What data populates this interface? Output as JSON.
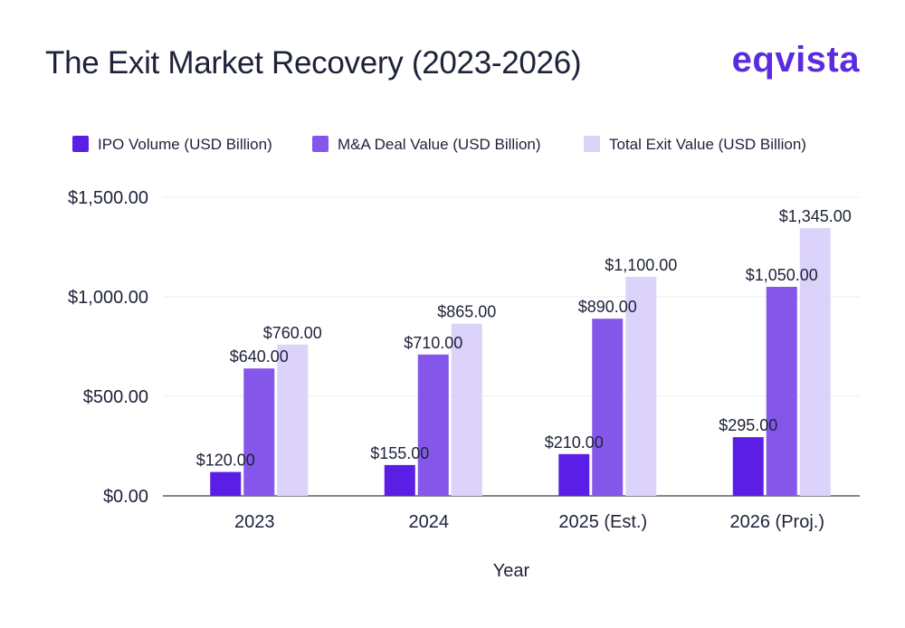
{
  "header": {
    "title": "The Exit Market Recovery (2023-2026)",
    "logo_text": "eqvista"
  },
  "chart_data": {
    "type": "bar",
    "title": "The Exit Market Recovery (2023-2026)",
    "xlabel": "Year",
    "ylabel": "",
    "categories": [
      "2023",
      "2024",
      "2025 (Est.)",
      "2026 (Proj.)"
    ],
    "series": [
      {
        "name": "IPO Volume (USD Billion)",
        "color": "#5a1ee6",
        "values": [
          120,
          155,
          210,
          295
        ],
        "labels": [
          "$120.00",
          "$155.00",
          "$210.00",
          "$295.00"
        ]
      },
      {
        "name": "M&A Deal Value (USD Billion)",
        "color": "#8457ea",
        "values": [
          640,
          710,
          890,
          1050
        ],
        "labels": [
          "$640.00",
          "$710.00",
          "$890.00",
          "$1,050.00"
        ]
      },
      {
        "name": "Total Exit Value (USD Billion)",
        "color": "#dcd3fb",
        "values": [
          760,
          865,
          1100,
          1345
        ],
        "labels": [
          "$760.00",
          "$865.00",
          "$1,100.00",
          "$1,345.00"
        ]
      }
    ],
    "ylim": [
      0,
      1500
    ],
    "yticks": [
      0,
      500,
      1000,
      1500
    ],
    "ytick_labels": [
      "$0.00",
      "$500.00",
      "$1,000.00",
      "$1,500.00"
    ],
    "grid": true,
    "legend_position": "top"
  }
}
